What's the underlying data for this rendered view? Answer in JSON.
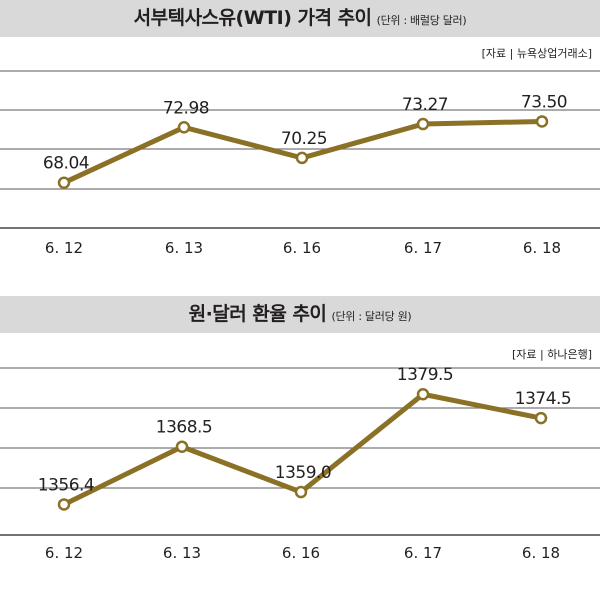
{
  "chart_data": [
    {
      "type": "line",
      "title": "서부텍사스유(WTI) 가격 추이",
      "unit": "(단위 : 배럴당 달러)",
      "source": "[자료 | 뉴욕상업거래소]",
      "categories": [
        "6. 12",
        "6. 13",
        "6. 16",
        "6. 17",
        "6. 18"
      ],
      "values": [
        68.04,
        72.98,
        70.25,
        73.27,
        73.5
      ],
      "value_labels": [
        "68.04",
        "72.98",
        "70.25",
        "73.27",
        "73.50"
      ],
      "ylim": [
        64,
        78
      ],
      "grid": true,
      "color": "#8a7126"
    },
    {
      "type": "line",
      "title": "원·달러 환율 추이",
      "unit": "(단위 : 달러당 원)",
      "source": "[자료 | 하나은행]",
      "categories": [
        "6. 12",
        "6. 13",
        "6. 16",
        "6. 17",
        "6. 18"
      ],
      "values": [
        1356.4,
        1368.5,
        1359.0,
        1379.5,
        1374.5
      ],
      "value_labels": [
        "1356.4",
        "1368.5",
        "1359.0",
        "1379.5",
        "1374.5"
      ],
      "ylim": [
        1350,
        1385
      ],
      "grid": true,
      "color": "#8a7126"
    }
  ]
}
